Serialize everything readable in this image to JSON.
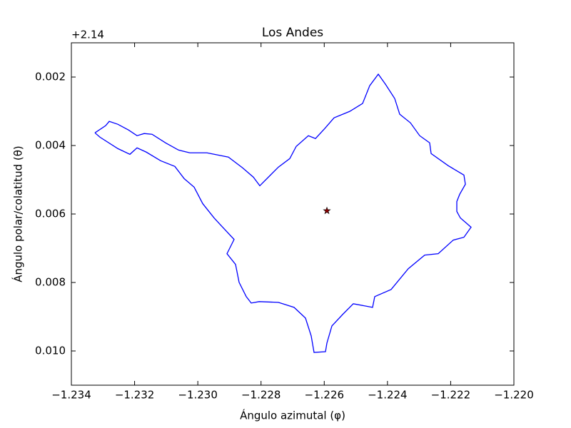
{
  "chart_data": {
    "type": "line",
    "title": "Los Andes",
    "xlabel": "Ángulo azimutal (φ)",
    "ylabel": "Ángulo polar/colatitud (θ)",
    "y_offset_text": "+2.14",
    "xlim": [
      -1.234,
      -1.22
    ],
    "ylim": [
      0.001,
      0.011
    ],
    "invert_y": true,
    "xticks": [
      {
        "value": -1.234,
        "label": "−1.234"
      },
      {
        "value": -1.232,
        "label": "−1.232"
      },
      {
        "value": -1.23,
        "label": "−1.230"
      },
      {
        "value": -1.228,
        "label": "−1.228"
      },
      {
        "value": -1.226,
        "label": "−1.226"
      },
      {
        "value": -1.224,
        "label": "−1.224"
      },
      {
        "value": -1.222,
        "label": "−1.222"
      },
      {
        "value": -1.22,
        "label": "−1.220"
      }
    ],
    "yticks": [
      0.002,
      0.004,
      0.006,
      0.008,
      {
        "value": 0.01,
        "label": "0.010"
      }
    ],
    "series": [
      {
        "color": "#0000ff",
        "x": [
          -1.233255,
          -1.232916,
          -1.232803,
          -1.232532,
          -1.232194,
          -1.231923,
          -1.231697,
          -1.231448,
          -1.231019,
          -1.230613,
          -1.230252,
          -1.22971,
          -1.229032,
          -1.228581,
          -1.228242,
          -1.228039,
          -1.227723,
          -1.227452,
          -1.22709,
          -1.226887,
          -1.226503,
          -1.226277,
          -1.225984,
          -1.22569,
          -1.225194,
          -1.224787,
          -1.224561,
          -1.22429,
          -1.224065,
          -1.223771,
          -1.223613,
          -1.223274,
          -1.222981,
          -1.222665,
          -1.222619,
          -1.222077,
          -1.221581,
          -1.221535,
          -1.221716,
          -1.221806,
          -1.221806,
          -1.221694,
          -1.221355,
          -1.221581,
          -1.221919,
          -1.222394,
          -1.222823,
          -1.223342,
          -1.223884,
          -1.224403,
          -1.224471,
          -1.225081,
          -1.225419,
          -1.225758,
          -1.225916,
          -1.225961,
          -1.226323,
          -1.226413,
          -1.226594,
          -1.226955,
          -1.227452,
          -1.228061,
          -1.22831,
          -1.228468,
          -1.228694,
          -1.228806,
          -1.229077,
          -1.228852,
          -1.229213,
          -1.229484,
          -1.229845,
          -1.230116,
          -1.230432,
          -1.230726,
          -1.231177,
          -1.231629,
          -1.231923,
          -1.232148,
          -1.232532,
          -1.233097,
          -1.233255
        ],
        "y": [
          0.003629,
          0.00342,
          0.003295,
          0.003379,
          0.003546,
          0.003713,
          0.00365,
          0.003671,
          0.003922,
          0.004131,
          0.004214,
          0.004214,
          0.004339,
          0.004653,
          0.004924,
          0.005175,
          0.004883,
          0.004632,
          0.004381,
          0.004026,
          0.003713,
          0.003796,
          0.003504,
          0.003191,
          0.003003,
          0.002773,
          0.002251,
          0.001916,
          0.002209,
          0.002627,
          0.003086,
          0.003337,
          0.003713,
          0.003922,
          0.004235,
          0.00459,
          0.004862,
          0.005133,
          0.005426,
          0.005635,
          0.005927,
          0.006115,
          0.006386,
          0.006679,
          0.006762,
          0.007159,
          0.007201,
          0.007598,
          0.008204,
          0.008413,
          0.008726,
          0.008621,
          0.008935,
          0.009269,
          0.00977,
          0.010021,
          0.010042,
          0.009561,
          0.009039,
          0.008726,
          0.00858,
          0.008559,
          0.008601,
          0.008413,
          0.007995,
          0.007473,
          0.007159,
          0.006742,
          0.006386,
          0.006115,
          0.005697,
          0.005217,
          0.004966,
          0.004611,
          0.004444,
          0.004193,
          0.004068,
          0.004256,
          0.004089,
          0.003755,
          0.003629
        ]
      }
    ],
    "points": [
      {
        "x": -1.225916,
        "y": 0.005906,
        "color": "#8b0000"
      }
    ]
  }
}
